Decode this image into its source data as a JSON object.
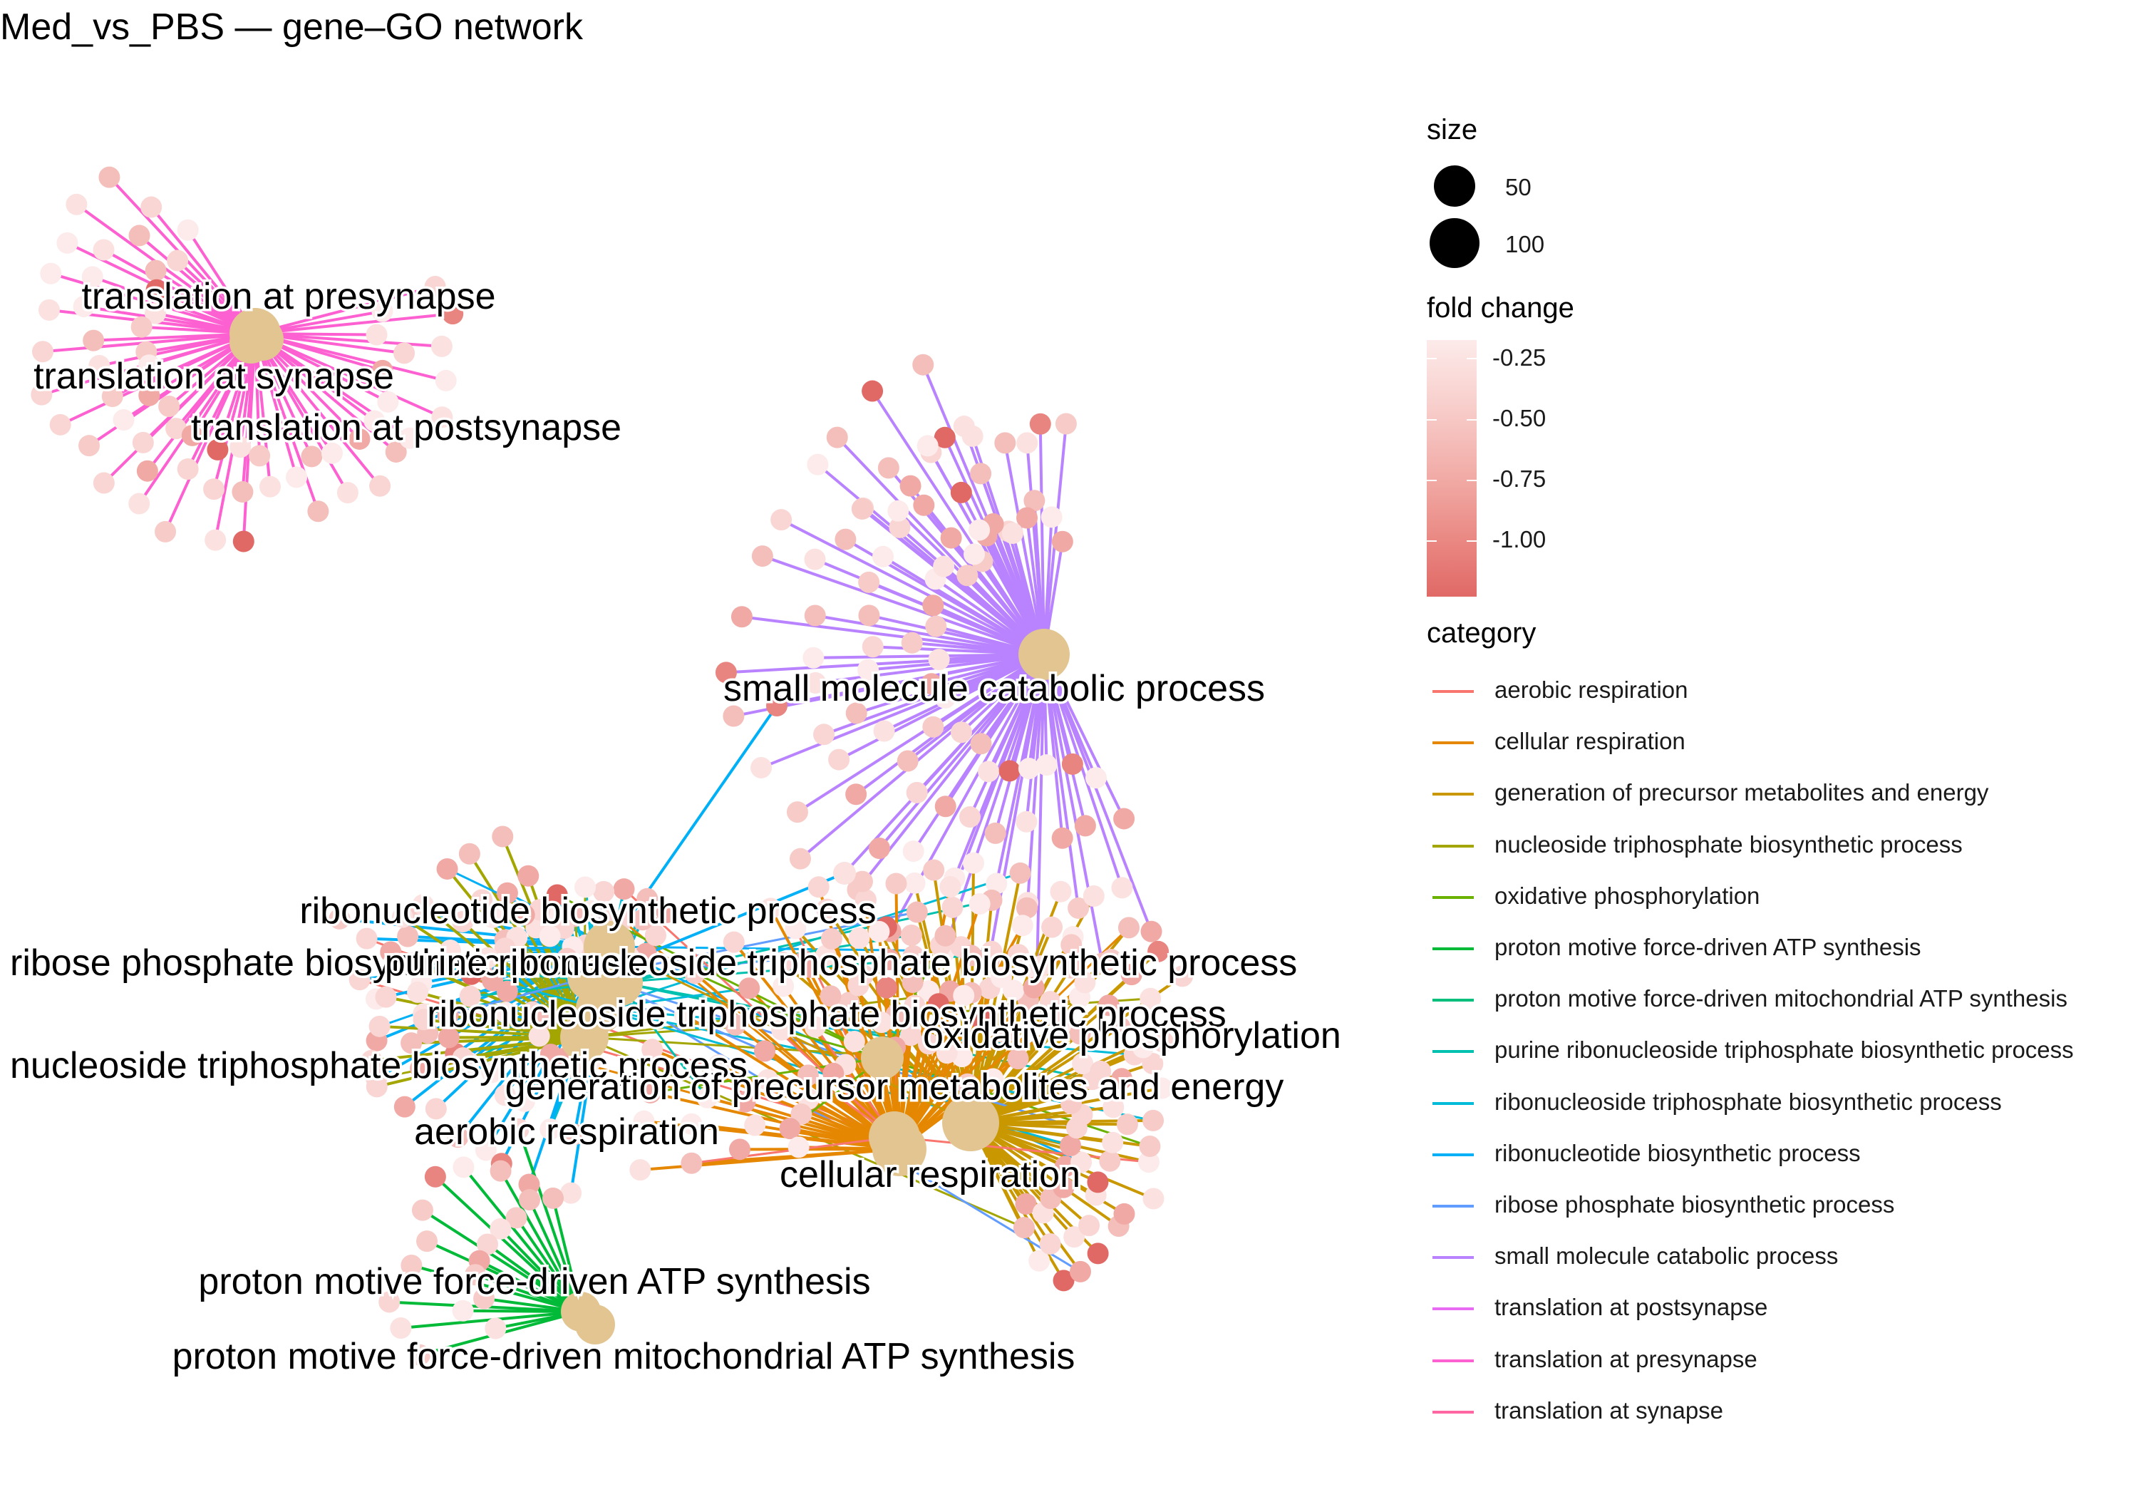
{
  "title": "Med_vs_PBS — gene–GO network",
  "node_color": "#e2c591",
  "low_color": "#e06966",
  "high_color": "#fcebea",
  "legend": {
    "size_title": "size",
    "size_labels": [
      "50",
      "100"
    ],
    "fc_title": "fold change",
    "fc_ticks": [
      "-0.25",
      "-0.50",
      "-0.75",
      "-1.00"
    ],
    "category_title": "category",
    "categories": [
      {
        "label": "aerobic respiration",
        "color": "#f8766d"
      },
      {
        "label": "cellular respiration",
        "color": "#e58700"
      },
      {
        "label": "generation of precursor metabolites and energy",
        "color": "#c99800"
      },
      {
        "label": "nucleoside triphosphate biosynthetic process",
        "color": "#a3a500"
      },
      {
        "label": "oxidative phosphorylation",
        "color": "#6bb100"
      },
      {
        "label": "proton motive force-driven ATP synthesis",
        "color": "#00ba38"
      },
      {
        "label": "proton motive force-driven mitochondrial ATP synthesis",
        "color": "#00bf7d"
      },
      {
        "label": "purine ribonucleoside triphosphate biosynthetic process",
        "color": "#00c0af"
      },
      {
        "label": "ribonucleoside triphosphate biosynthetic process",
        "color": "#00bcd8"
      },
      {
        "label": "ribonucleotide biosynthetic process",
        "color": "#00b0f6"
      },
      {
        "label": "ribose phosphate biosynthetic process",
        "color": "#619cff"
      },
      {
        "label": "small molecule catabolic process",
        "color": "#b983ff"
      },
      {
        "label": "translation at postsynapse",
        "color": "#e76bf3"
      },
      {
        "label": "translation at presynapse",
        "color": "#fd61d1"
      },
      {
        "label": "translation at synapse",
        "color": "#ff67a4"
      }
    ]
  },
  "network": {
    "hubs": [
      {
        "label": "translation at presynapse",
        "category": "translation at presynapse"
      },
      {
        "label": "translation at synapse",
        "category": "translation at synapse"
      },
      {
        "label": "translation at postsynapse",
        "category": "translation at postsynapse"
      },
      {
        "label": "small molecule catabolic process",
        "category": "small molecule catabolic process"
      },
      {
        "label": "ribonucleotide biosynthetic process",
        "category": "ribonucleotide biosynthetic process"
      },
      {
        "label": "ribose phosphate biosynthetic process",
        "category": "ribose phosphate biosynthetic process"
      },
      {
        "label": "purine ribonucleoside triphosphate biosynthetic process",
        "category": "purine ribonucleoside triphosphate biosynthetic process"
      },
      {
        "label": "ribonucleoside triphosphate biosynthetic process",
        "category": "ribonucleoside triphosphate biosynthetic process"
      },
      {
        "label": "nucleoside triphosphate biosynthetic process",
        "category": "nucleoside triphosphate biosynthetic process"
      },
      {
        "label": "oxidative phosphorylation",
        "category": "oxidative phosphorylation"
      },
      {
        "label": "generation of precursor metabolites and energy",
        "category": "generation of precursor metabolites and energy"
      },
      {
        "label": "aerobic respiration",
        "category": "aerobic respiration"
      },
      {
        "label": "cellular respiration",
        "category": "cellular respiration"
      },
      {
        "label": "proton motive force-driven ATP synthesis",
        "category": "proton motive force-driven ATP synthesis"
      },
      {
        "label": "proton motive force-driven mitochondrial ATP synthesis",
        "category": "proton motive force-driven mitochondrial ATP synthesis"
      }
    ]
  }
}
